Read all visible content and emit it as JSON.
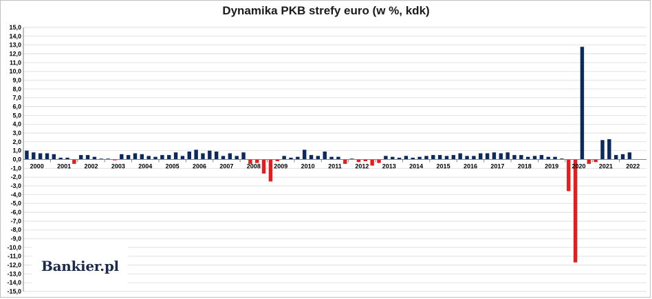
{
  "title": "Dynamika PKB strefy euro (w %, kdk)",
  "logo": "Bankier.pl",
  "colors": {
    "positive": "#0d2a5c",
    "negative": "#e41e1e",
    "grid": "#d0d0d0",
    "axis": "#7f7f7f"
  },
  "chart_data": {
    "type": "bar",
    "title": "Dynamika PKB strefy euro (w %, kdk)",
    "xlabel": "",
    "ylabel": "",
    "ylim": [
      -15,
      15
    ],
    "grid": true,
    "legend": "none",
    "yticks": [
      "15,0",
      "14,0",
      "13,0",
      "12,0",
      "11,0",
      "10,0",
      "9,0",
      "8,0",
      "7,0",
      "6,0",
      "5,0",
      "4,0",
      "3,0",
      "2,0",
      "1,0",
      "0,0",
      "-1,0",
      "-2,0",
      "-3,0",
      "-4,0",
      "-5,0",
      "-6,0",
      "-7,0",
      "-8,0",
      "-9,0",
      "-10,0",
      "-11,0",
      "-12,0",
      "-13,0",
      "-14,0",
      "-15,0"
    ],
    "year_labels": [
      "2000",
      "2001",
      "2002",
      "2003",
      "2004",
      "2005",
      "2006",
      "2007",
      "2008",
      "2009",
      "2010",
      "2011",
      "2012",
      "2013",
      "2014",
      "2015",
      "2016",
      "2017",
      "2018",
      "2019",
      "2020",
      "2021",
      "2022"
    ],
    "quarters_per_year": 4,
    "values": [
      1.0,
      0.8,
      0.7,
      0.7,
      0.6,
      0.2,
      0.2,
      -0.5,
      0.5,
      0.5,
      0.3,
      0.0,
      0.0,
      -0.1,
      0.6,
      0.5,
      0.7,
      0.6,
      0.4,
      0.3,
      0.5,
      0.5,
      0.8,
      0.4,
      0.9,
      1.1,
      0.7,
      1.0,
      0.9,
      0.4,
      0.7,
      0.4,
      0.8,
      -0.5,
      -0.4,
      -1.6,
      -2.5,
      -0.2,
      0.4,
      0.2,
      0.3,
      1.1,
      0.5,
      0.4,
      0.9,
      0.3,
      0.3,
      -0.5,
      0.0,
      -0.3,
      -0.2,
      -0.7,
      -0.4,
      0.4,
      0.3,
      0.2,
      0.4,
      0.2,
      0.3,
      0.4,
      0.5,
      0.5,
      0.4,
      0.5,
      0.7,
      0.4,
      0.4,
      0.7,
      0.7,
      0.8,
      0.7,
      0.8,
      0.5,
      0.5,
      0.3,
      0.4,
      0.5,
      0.3,
      0.3,
      0.1,
      -3.6,
      -11.7,
      12.8,
      -0.5,
      -0.3,
      2.2,
      2.3,
      0.5,
      0.6,
      0.8
    ]
  }
}
